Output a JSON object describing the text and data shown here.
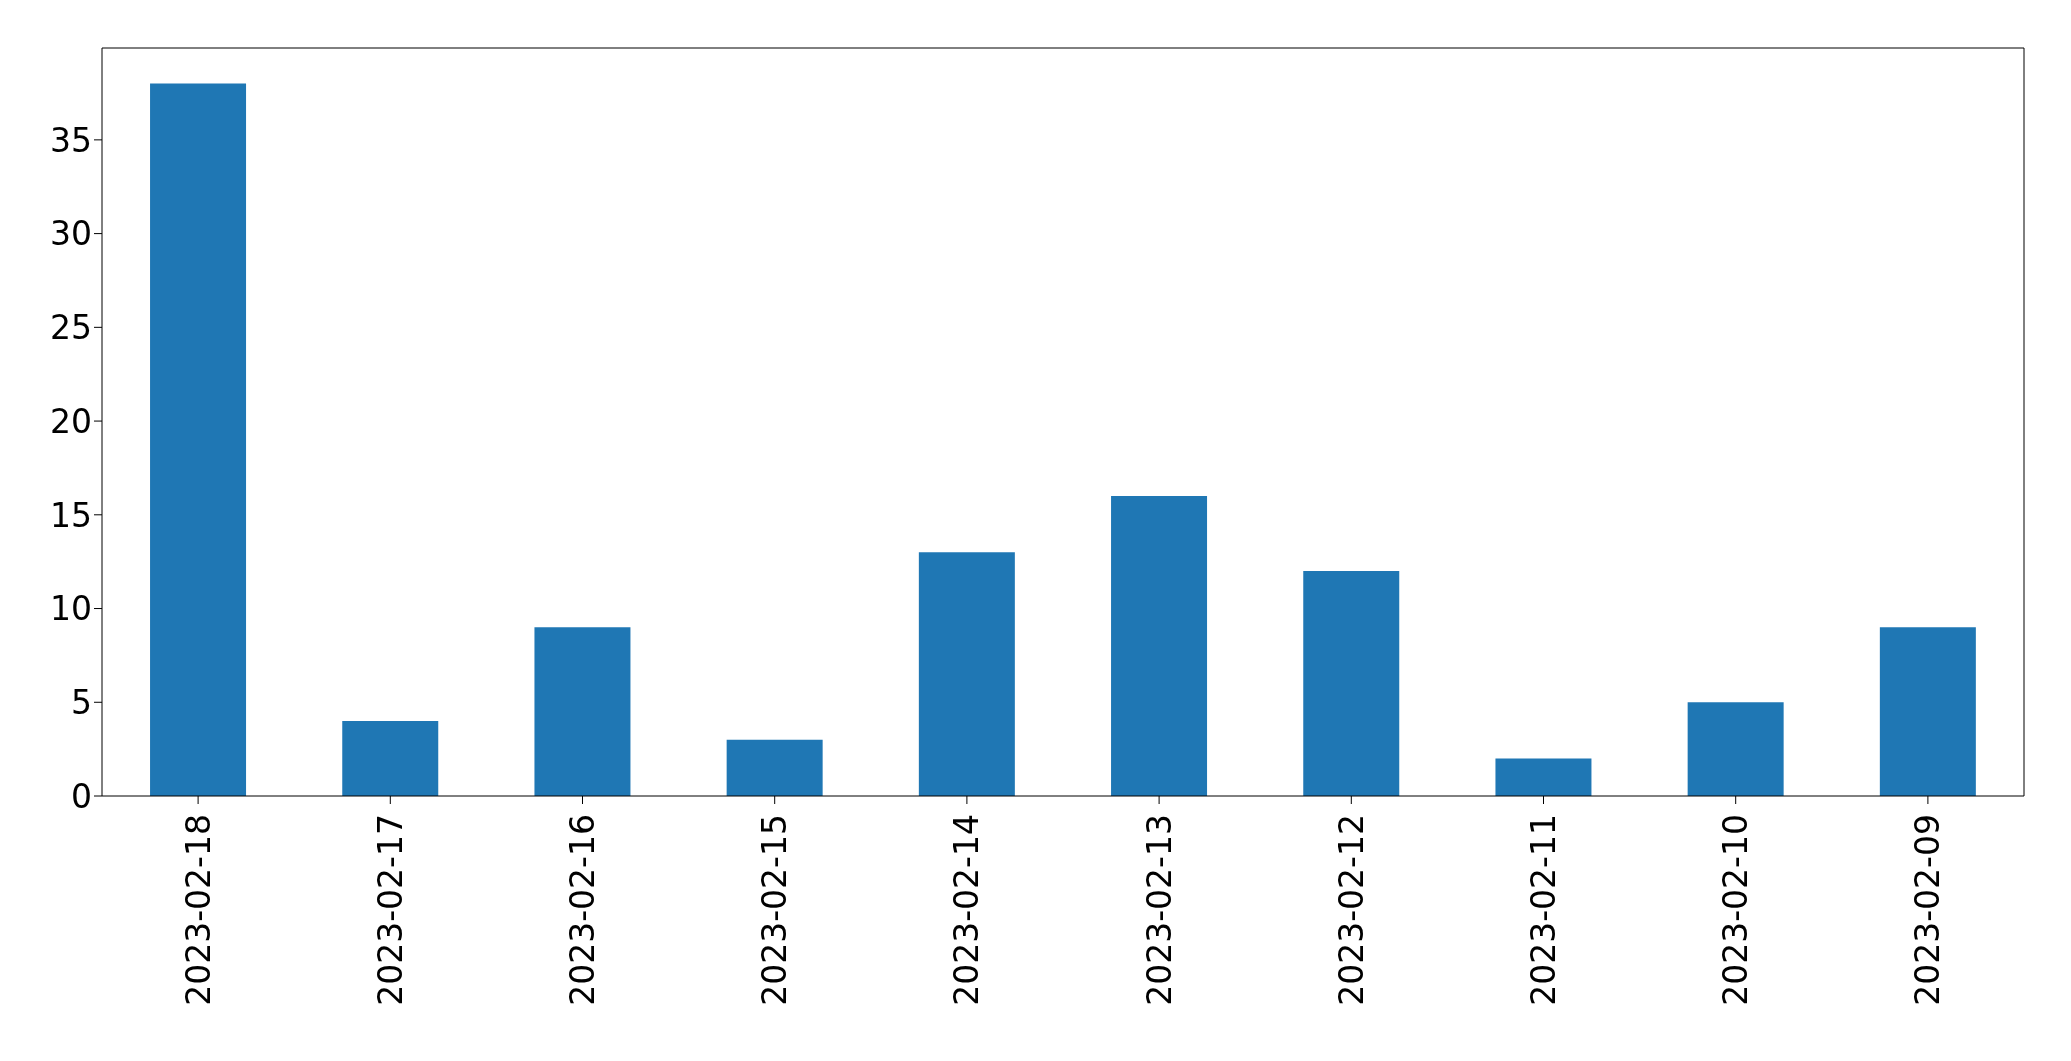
{
  "chart_data": {
    "type": "bar",
    "categories": [
      "2023-02-18",
      "2023-02-17",
      "2023-02-16",
      "2023-02-15",
      "2023-02-14",
      "2023-02-13",
      "2023-02-12",
      "2023-02-11",
      "2023-02-10",
      "2023-02-09"
    ],
    "values": [
      38,
      4,
      9,
      3,
      13,
      16,
      12,
      2,
      5,
      9
    ],
    "color": "#1f77b4",
    "ylim": [
      0,
      39.9
    ],
    "yticks": [
      0,
      5,
      10,
      15,
      20,
      25,
      30,
      35
    ],
    "grid": false,
    "legend": false
  }
}
